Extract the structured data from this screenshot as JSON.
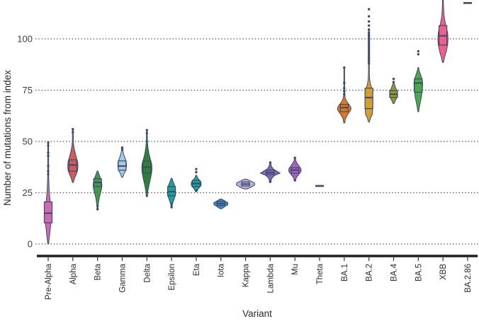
{
  "figure": {
    "background": "#ffffff"
  },
  "chart_data": {
    "type": "violin",
    "title": "",
    "xlabel": "Variant",
    "ylabel": "Number of mutations from index",
    "ylim": [
      0,
      119
    ],
    "yticks": [
      0,
      25,
      50,
      75,
      100
    ],
    "grid": "horizontal dotted",
    "legend": "none",
    "axis_color": "#1f1f1f",
    "grid_color": "#4a4a4a",
    "outline_color": "#3b4a68",
    "text_color": "#3d3d3d",
    "series": [
      {
        "label": "Pre-Alpha",
        "type": "violin",
        "color": "#cf6ab2",
        "median": 15,
        "q1": 10.3,
        "q3": 20.5,
        "profile": [
          [
            0,
            0.6
          ],
          [
            2,
            1.2
          ],
          [
            5,
            2.2
          ],
          [
            8,
            3.2
          ],
          [
            11,
            4.2
          ],
          [
            14,
            4.6
          ],
          [
            17,
            4.2
          ],
          [
            20,
            3.2
          ],
          [
            23,
            2.2
          ],
          [
            26,
            1.4
          ],
          [
            30,
            1.0
          ],
          [
            33,
            0.7
          ],
          [
            49,
            0.5
          ]
        ],
        "outliers": [
          34,
          35.5,
          38,
          43,
          44.5,
          48,
          49.5
        ]
      },
      {
        "label": "Alpha",
        "type": "violin",
        "color": "#cd5c5c",
        "median": 38.5,
        "q1": 35.5,
        "q3": 41,
        "profile": [
          [
            30,
            0.7
          ],
          [
            32,
            2.2
          ],
          [
            34,
            4.8
          ],
          [
            36,
            6.8
          ],
          [
            38,
            7.2
          ],
          [
            40,
            6.8
          ],
          [
            42,
            5.2
          ],
          [
            44,
            3.6
          ],
          [
            46,
            2.2
          ],
          [
            48,
            1.2
          ],
          [
            50,
            0.7
          ],
          [
            56,
            0.45
          ]
        ],
        "outliers": [
          54.5,
          56
        ]
      },
      {
        "label": "Beta",
        "type": "violin",
        "color": "#44984e",
        "median": 30,
        "q1": 28,
        "q3": 31.8,
        "profile": [
          [
            16.5,
            0.5
          ],
          [
            19,
            0.9
          ],
          [
            22,
            2.2
          ],
          [
            25,
            4.2
          ],
          [
            27,
            5.8
          ],
          [
            29,
            6.2
          ],
          [
            31,
            5.2
          ],
          [
            33,
            3.2
          ],
          [
            34.5,
            1.6
          ],
          [
            35.5,
            0.7
          ]
        ],
        "outliers": [
          17,
          18.5
        ]
      },
      {
        "label": "Gamma",
        "type": "violin",
        "color": "#a6c9e5",
        "median": 38,
        "q1": 36,
        "q3": 40.5,
        "profile": [
          [
            32.5,
            0.8
          ],
          [
            34,
            2.2
          ],
          [
            36,
            5.2
          ],
          [
            38,
            6.2
          ],
          [
            40,
            5.8
          ],
          [
            42,
            3.8
          ],
          [
            43.5,
            2.2
          ],
          [
            45,
            1.2
          ],
          [
            47,
            0.6
          ]
        ],
        "outliers": [
          46,
          47
        ]
      },
      {
        "label": "Delta",
        "type": "violin",
        "color": "#2f7e3a",
        "median": 37.5,
        "q1": 34.5,
        "q3": 40.5,
        "profile": [
          [
            23.5,
            0.6
          ],
          [
            26,
            1.6
          ],
          [
            29,
            3.2
          ],
          [
            32,
            5.2
          ],
          [
            35,
            6.8
          ],
          [
            37,
            7.2
          ],
          [
            39,
            6.8
          ],
          [
            41,
            5.2
          ],
          [
            43,
            3.6
          ],
          [
            45,
            2.4
          ],
          [
            47,
            1.6
          ],
          [
            49,
            1.0
          ],
          [
            51,
            0.7
          ],
          [
            55,
            0.45
          ]
        ],
        "outliers": [
          23.5,
          54,
          55.5
        ]
      },
      {
        "label": "Epsilon",
        "type": "violin",
        "color": "#1f9e9e",
        "median": 25.5,
        "q1": 23.5,
        "q3": 28,
        "profile": [
          [
            17.5,
            0.6
          ],
          [
            19.5,
            1.2
          ],
          [
            21.5,
            3.2
          ],
          [
            23.5,
            5.2
          ],
          [
            25,
            5.6
          ],
          [
            26.5,
            5.4
          ],
          [
            28,
            4.8
          ],
          [
            29.5,
            3.2
          ],
          [
            31,
            1.6
          ],
          [
            32,
            0.8
          ]
        ],
        "outliers": [
          18,
          19.5
        ]
      },
      {
        "label": "Eta",
        "type": "violin",
        "color": "#1aa3a0",
        "median": 29.5,
        "q1": 28,
        "q3": 31,
        "profile": [
          [
            25.5,
            0.9
          ],
          [
            27,
            3.2
          ],
          [
            28.5,
            6.8
          ],
          [
            29.5,
            7.2
          ],
          [
            30.5,
            6.2
          ],
          [
            31.5,
            3.6
          ],
          [
            32.5,
            1.6
          ],
          [
            33.5,
            0.7
          ]
        ],
        "outliers": [
          26,
          35,
          36.5
        ]
      },
      {
        "label": "Iota",
        "type": "violin",
        "color": "#3c87c9",
        "median": 19.7,
        "q1": 18.8,
        "q3": 20.8,
        "profile": [
          [
            17.2,
            1.2
          ],
          [
            18.2,
            5.5
          ],
          [
            19.2,
            9.8
          ],
          [
            20.2,
            9.8
          ],
          [
            21.2,
            4.5
          ],
          [
            21.9,
            1.2
          ]
        ],
        "outliers": []
      },
      {
        "label": "Kappa",
        "type": "violin",
        "color": "#b6afda",
        "median": 29.2,
        "q1": 28.3,
        "q3": 30.2,
        "profile": [
          [
            26.8,
            1.6
          ],
          [
            27.8,
            8.5
          ],
          [
            28.8,
            13
          ],
          [
            29.8,
            12.5
          ],
          [
            30.8,
            6.5
          ],
          [
            31.6,
            1.6
          ]
        ],
        "outliers": []
      },
      {
        "label": "Lambda",
        "type": "violin",
        "color": "#7f68bb",
        "median": 34.8,
        "q1": 33.8,
        "q3": 36,
        "profile": [
          [
            30.5,
            0.9
          ],
          [
            32,
            2.2
          ],
          [
            33.5,
            6.5
          ],
          [
            34.5,
            14
          ],
          [
            35.5,
            9.5
          ],
          [
            36.5,
            4.5
          ],
          [
            37.8,
            1.8
          ],
          [
            39.3,
            0.7
          ]
        ],
        "outliers": [
          30.3,
          39.7
        ]
      },
      {
        "label": "Mu",
        "type": "violin",
        "color": "#a960c4",
        "median": 36,
        "q1": 34.5,
        "q3": 37.2,
        "profile": [
          [
            31,
            0.8
          ],
          [
            32.5,
            2.2
          ],
          [
            34,
            5.8
          ],
          [
            35.5,
            8.8
          ],
          [
            36.8,
            8.4
          ],
          [
            38,
            5.8
          ],
          [
            39.5,
            2.8
          ],
          [
            40.6,
            1.2
          ],
          [
            42,
            0.6
          ]
        ],
        "outliers": [
          31,
          42
        ]
      },
      {
        "label": "Theta",
        "type": "dash",
        "value": 28.3
      },
      {
        "label": "BA.1",
        "type": "violin",
        "color": "#e2791e",
        "median": 66.5,
        "q1": 64.5,
        "q3": 68,
        "profile": [
          [
            59,
            0.7
          ],
          [
            61,
            1.6
          ],
          [
            63,
            4.6
          ],
          [
            65,
            8.8
          ],
          [
            66,
            9.6
          ],
          [
            67,
            8.8
          ],
          [
            68.5,
            5.6
          ],
          [
            70,
            2.6
          ],
          [
            71.5,
            1.2
          ],
          [
            74,
            0.6
          ],
          [
            86,
            0.45
          ]
        ],
        "outliers": [
          73,
          74.5,
          76,
          78.5,
          86
        ]
      },
      {
        "label": "BA.2",
        "type": "violin",
        "color": "#d3a02f",
        "median": 71.4,
        "q1": 66,
        "q3": 76,
        "profile": [
          [
            59.5,
            0.7
          ],
          [
            61.5,
            2.2
          ],
          [
            63,
            4.6
          ],
          [
            65,
            5.2
          ],
          [
            68,
            4.9
          ],
          [
            71,
            4.6
          ],
          [
            74,
            4.3
          ],
          [
            76.5,
            3.4
          ],
          [
            78.5,
            1.8
          ],
          [
            81,
            0.9
          ],
          [
            84,
            0.6
          ],
          [
            105,
            0.45
          ]
        ],
        "outliers": [
          88,
          89,
          90,
          91,
          92,
          93,
          94,
          95,
          96,
          97,
          98,
          99,
          100,
          101,
          102,
          103,
          104.5,
          106.5,
          108.5,
          111,
          114.5
        ]
      },
      {
        "label": "BA.4",
        "type": "violin",
        "color": "#9a962f",
        "median": 73,
        "q1": 71.5,
        "q3": 74.8,
        "profile": [
          [
            68.5,
            0.8
          ],
          [
            70,
            2.6
          ],
          [
            71.5,
            4.8
          ],
          [
            73,
            5.6
          ],
          [
            74.5,
            4.8
          ],
          [
            76,
            3.2
          ],
          [
            77.5,
            1.6
          ],
          [
            78.5,
            0.7
          ]
        ],
        "outliers": [
          79,
          80.5
        ]
      },
      {
        "label": "BA.5",
        "type": "violin",
        "color": "#4ba84b",
        "median": 78.5,
        "q1": 74,
        "q3": 80.5,
        "profile": [
          [
            64.5,
            0.6
          ],
          [
            66.5,
            1.4
          ],
          [
            69,
            2.8
          ],
          [
            72,
            4.6
          ],
          [
            75,
            5.6
          ],
          [
            78,
            6.2
          ],
          [
            80,
            5.6
          ],
          [
            82,
            3.8
          ],
          [
            83.5,
            2.2
          ],
          [
            85,
            1.0
          ],
          [
            86,
            0.6
          ]
        ],
        "outliers": [
          92.5,
          94
        ]
      },
      {
        "label": "XBB",
        "type": "violin",
        "color": "#ee5f8a",
        "median": 101.5,
        "q1": 97,
        "q3": 106.5,
        "profile": [
          [
            88.5,
            0.7
          ],
          [
            91,
            2.2
          ],
          [
            94,
            4.8
          ],
          [
            97,
            6.6
          ],
          [
            100,
            7.2
          ],
          [
            103,
            6.6
          ],
          [
            105,
            5.2
          ],
          [
            107,
            3.8
          ],
          [
            109.5,
            2.4
          ],
          [
            112,
            1.4
          ],
          [
            115,
            0.9
          ],
          [
            119,
            0.6
          ]
        ],
        "outliers": []
      },
      {
        "label": "BA.2.86",
        "type": "dash",
        "value": 117.5
      }
    ]
  }
}
